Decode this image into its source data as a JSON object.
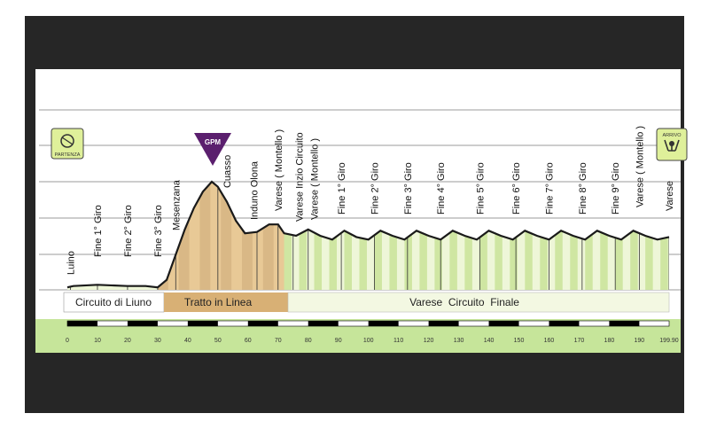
{
  "chart_data": {
    "type": "area",
    "title": "",
    "xlabel": "",
    "ylabel": "",
    "xlim": [
      0,
      199.9
    ],
    "x_ticks": [
      "0",
      "10",
      "20",
      "30",
      "40",
      "50",
      "60",
      "70",
      "80",
      "90",
      "100",
      "110",
      "120",
      "130",
      "140",
      "150",
      "160",
      "170",
      "180",
      "190",
      "199.90"
    ],
    "series": [
      {
        "values": [
          [
            0,
            2
          ],
          [
            2,
            3
          ],
          [
            10,
            4
          ],
          [
            20,
            3
          ],
          [
            26,
            3
          ],
          [
            30,
            2
          ],
          [
            33,
            8
          ],
          [
            36,
            28
          ],
          [
            39,
            48
          ],
          [
            42,
            65
          ],
          [
            45,
            78
          ],
          [
            48,
            86
          ],
          [
            50,
            82
          ],
          [
            53,
            70
          ],
          [
            56,
            55
          ],
          [
            59,
            45
          ],
          [
            63,
            46
          ],
          [
            67,
            52
          ],
          [
            70,
            52
          ],
          [
            72,
            45
          ],
          [
            76,
            43
          ],
          [
            80,
            48
          ],
          [
            84,
            43
          ],
          [
            88,
            40
          ],
          [
            92,
            47
          ],
          [
            96,
            42
          ],
          [
            100,
            40
          ],
          [
            104,
            47
          ],
          [
            108,
            43
          ],
          [
            112,
            40
          ],
          [
            116,
            47
          ],
          [
            120,
            43
          ],
          [
            124,
            40
          ],
          [
            128,
            47
          ],
          [
            132,
            43
          ],
          [
            136,
            40
          ],
          [
            140,
            47
          ],
          [
            144,
            43
          ],
          [
            148,
            40
          ],
          [
            152,
            47
          ],
          [
            156,
            43
          ],
          [
            160,
            40
          ],
          [
            164,
            47
          ],
          [
            168,
            43
          ],
          [
            172,
            40
          ],
          [
            176,
            47
          ],
          [
            180,
            43
          ],
          [
            184,
            40
          ],
          [
            188,
            47
          ],
          [
            192,
            43
          ],
          [
            196,
            40
          ],
          [
            199.9,
            42
          ]
        ]
      }
    ],
    "labels": [
      "Luino",
      "Fine 1° Giro",
      "Fine 2° Giro",
      "Fine 3° Giro",
      "Mesenzana",
      "Cuasso",
      "Induno Olona",
      "Varese ( Montello )",
      "Varese Inzio Circuito",
      "Varese ( Montello )",
      "Fine 1° Giro",
      "Fine 2° Giro",
      "Fine 3° Giro",
      "Fine 4° Giro",
      "Fine 5° Giro",
      "Fine 6° Giro",
      "Fine 7° Giro",
      "Fine 8° Giro",
      "Fine 9° Giro",
      "Varese ( Montello )",
      "Varese"
    ],
    "sections": [
      "Circuito di Liuno",
      "Tratto in Linea",
      "Varese  Circuito  Finale"
    ],
    "gpm_label": "GPM",
    "start_label": "PARTENZA",
    "finish_label": "ARRIVO",
    "colors": {
      "profile_fill": "#d9b886",
      "profile_fill_dark": "#a07d4f",
      "circuit_fill": "#eef6d8",
      "circuit_stripe": "#cfe6a2",
      "tratto_band": "#d8b075",
      "circuito_band": "#f3f8e2",
      "footer_green": "#c6e59a",
      "gpm": "#5b1f6e",
      "badge_yellow": "#dff09a"
    }
  }
}
